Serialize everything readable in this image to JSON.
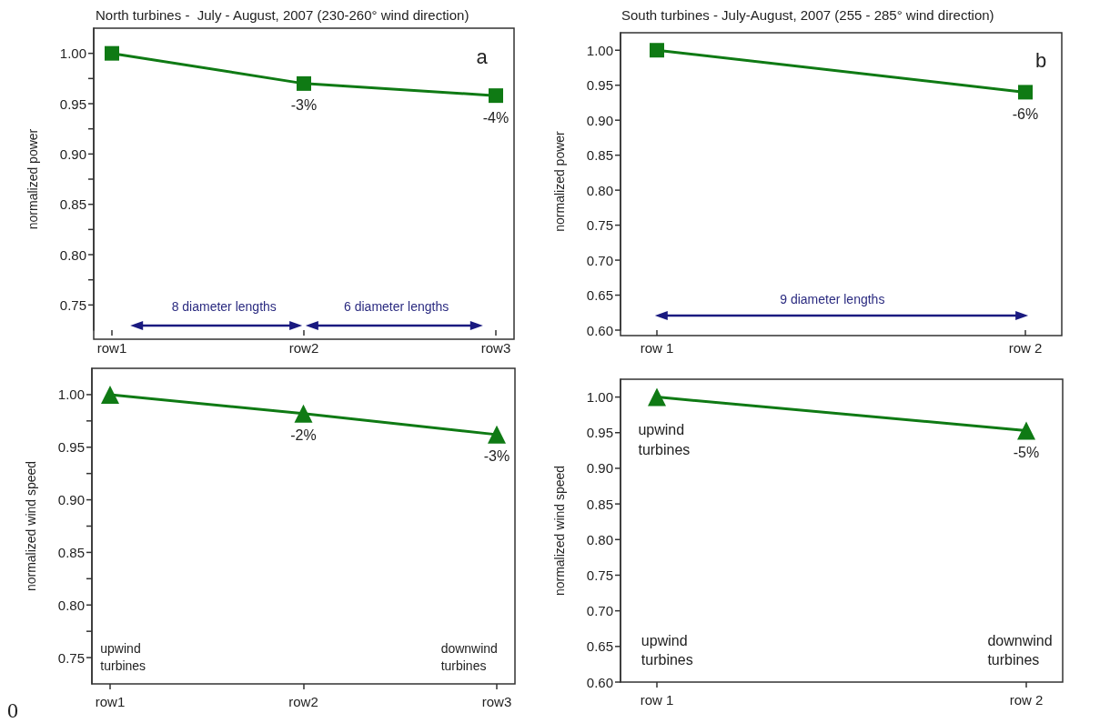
{
  "chart_data": [
    {
      "type": "line",
      "title": "North turbines -  July - August, 2007 (230-260° wind direction)",
      "ylabel": "normalized power",
      "categories": [
        "row1",
        "row2",
        "row3"
      ],
      "values": [
        1.0,
        0.97,
        0.958
      ],
      "color": "#0f7a14",
      "marker": "square",
      "ylim": [
        0.725,
        1.025
      ],
      "yticks": [
        0.75,
        {
          "value": 0.775,
          "label": null
        },
        {
          "value": 0.8,
          "label": "0.80"
        },
        {
          "value": 0.825,
          "label": null
        },
        0.85,
        {
          "value": 0.875,
          "label": null
        },
        {
          "value": 0.9,
          "label": "0.90"
        },
        {
          "value": 0.925,
          "label": null
        },
        0.95,
        {
          "value": 0.975,
          "label": null
        },
        {
          "value": 1.0,
          "label": "1.00"
        }
      ],
      "annotations": [
        "a",
        "8 diameter lengths",
        "6 diameter lengths",
        {
          "text": "-3%",
          "x": "row2",
          "y": 0.97
        },
        {
          "text": "-4%",
          "x": "row3",
          "y": 0.958
        }
      ]
    },
    {
      "type": "line",
      "title": "South turbines - July-August, 2007 (255 - 285° wind direction)",
      "ylabel": "normalized power",
      "categories": [
        "row 1",
        "row 2"
      ],
      "values": [
        1.0,
        0.94
      ],
      "color": "#0f7a14",
      "marker": "square",
      "ylim": [
        0.6,
        1.025
      ],
      "yticks": [
        {
          "value": 0.6,
          "label": "0.60"
        },
        0.65,
        {
          "value": 0.7,
          "label": "0.70"
        },
        0.75,
        {
          "value": 0.8,
          "label": "0.80"
        },
        0.85,
        {
          "value": 0.9,
          "label": "0.90"
        },
        0.95,
        {
          "value": 1.0,
          "label": "1.00"
        }
      ],
      "annotations": [
        "b",
        "9 diameter lengths",
        {
          "text": "-6%",
          "x": "row 2",
          "y": 0.94
        }
      ]
    },
    {
      "type": "line",
      "ylabel": "normalized wind speed",
      "categories": [
        "row1",
        "row2",
        "row3"
      ],
      "values": [
        1.0,
        0.982,
        0.962
      ],
      "color": "#0f7a14",
      "marker": "triangle",
      "ylim": [
        0.725,
        1.025
      ],
      "yticks": [
        0.75,
        {
          "value": 0.775,
          "label": null
        },
        {
          "value": 0.8,
          "label": "0.80"
        },
        {
          "value": 0.825,
          "label": null
        },
        0.85,
        {
          "value": 0.875,
          "label": null
        },
        {
          "value": 0.9,
          "label": "0.90"
        },
        {
          "value": 0.925,
          "label": null
        },
        0.95,
        {
          "value": 0.975,
          "label": null
        },
        {
          "value": 1.0,
          "label": "1.00"
        }
      ],
      "annotations": [
        "upwind turbines",
        "downwind turbines",
        "0",
        {
          "text": "-2%",
          "x": "row2",
          "y": 0.982
        },
        {
          "text": "-3%",
          "x": "row3",
          "y": 0.962
        }
      ]
    },
    {
      "type": "line",
      "ylabel": "normalized wind speed",
      "categories": [
        "row 1",
        "row 2"
      ],
      "values": [
        1.0,
        0.953
      ],
      "color": "#0f7a14",
      "marker": "triangle",
      "ylim": [
        0.6,
        1.025
      ],
      "yticks": [
        {
          "value": 0.6,
          "label": "0.60"
        },
        0.65,
        {
          "value": 0.7,
          "label": "0.70"
        },
        0.75,
        {
          "value": 0.8,
          "label": "0.80"
        },
        0.85,
        {
          "value": 0.9,
          "label": "0.90"
        },
        0.95,
        {
          "value": 1.0,
          "label": "1.00"
        }
      ],
      "annotations": [
        "upwind turbines",
        "upwind turbines",
        "downwind turbines",
        {
          "text": "-5%",
          "x": "row 2",
          "y": 0.953
        }
      ]
    }
  ]
}
